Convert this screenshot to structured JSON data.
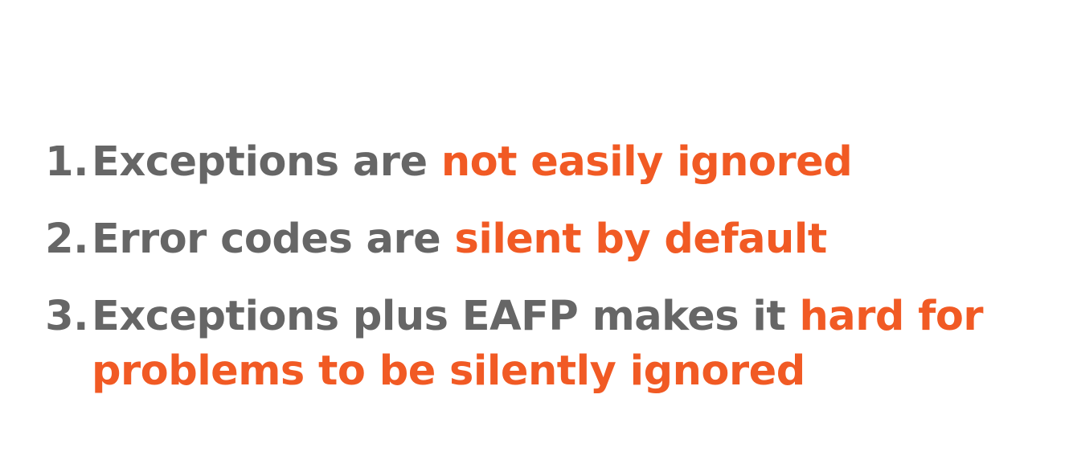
{
  "colors": {
    "text": "#666666",
    "accent": "#f15a24",
    "background": "#ffffff"
  },
  "points": [
    {
      "number": "1.",
      "text": "Exceptions are",
      "highlight": "not easily ignored"
    },
    {
      "number": "2.",
      "text": "Error codes are",
      "highlight": "silent by default"
    },
    {
      "number": "3.",
      "text": "Exceptions plus EAFP makes it",
      "highlight_line1": "hard for",
      "highlight_line2": "problems to be silently ignored"
    }
  ]
}
